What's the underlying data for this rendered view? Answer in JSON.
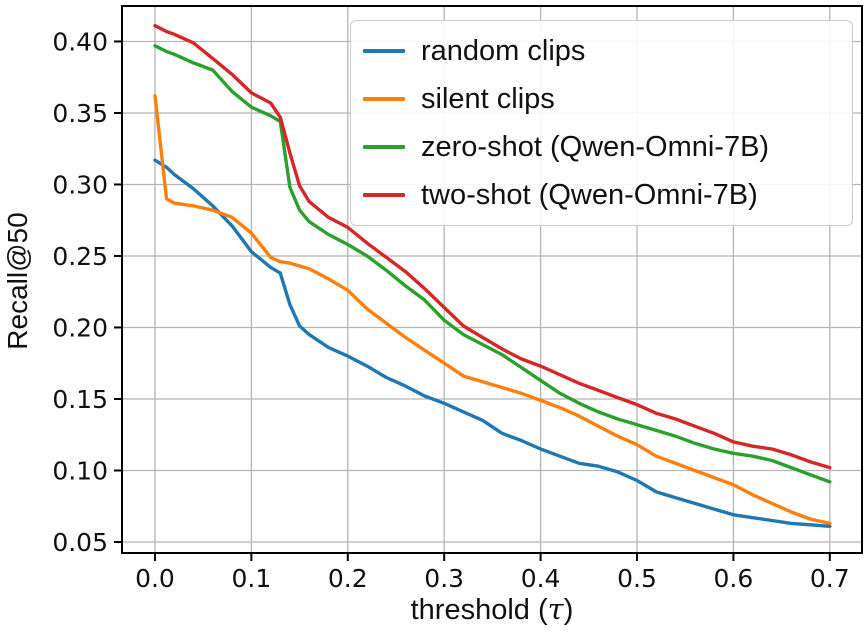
{
  "chart_data": {
    "type": "line",
    "title": "",
    "xlabel": "threshold (τ)",
    "ylabel": "Recall@50",
    "xlim": [
      -0.0342,
      0.7334
    ],
    "ylim": [
      0.0423,
      0.4248
    ],
    "xticks": [
      0.0,
      0.1,
      0.2,
      0.3,
      0.4,
      0.5,
      0.6,
      0.7
    ],
    "xtick_labels": [
      "0.0",
      "0.1",
      "0.2",
      "0.3",
      "0.4",
      "0.5",
      "0.6",
      "0.7"
    ],
    "yticks": [
      0.05,
      0.1,
      0.15,
      0.2,
      0.25,
      0.3,
      0.35,
      0.4
    ],
    "ytick_labels": [
      "0.05",
      "0.10",
      "0.15",
      "0.20",
      "0.25",
      "0.30",
      "0.35",
      "0.40"
    ],
    "grid": true,
    "grid_color": "#b5b5b5",
    "spine_color": "#000000",
    "legend_position": "upper right",
    "x": [
      0,
      0.012,
      0.02,
      0.04,
      0.06,
      0.08,
      0.1,
      0.12,
      0.13,
      0.14,
      0.15,
      0.16,
      0.18,
      0.2,
      0.22,
      0.24,
      0.26,
      0.28,
      0.3,
      0.32,
      0.34,
      0.36,
      0.38,
      0.4,
      0.42,
      0.44,
      0.46,
      0.48,
      0.5,
      0.52,
      0.54,
      0.56,
      0.58,
      0.6,
      0.62,
      0.64,
      0.66,
      0.68,
      0.7
    ],
    "series": [
      {
        "name": "random clips",
        "color": "#1f77b4",
        "values": [
          0.317,
          0.312,
          0.307,
          0.297,
          0.285,
          0.271,
          0.253,
          0.242,
          0.238,
          0.216,
          0.201,
          0.195,
          0.186,
          0.18,
          0.173,
          0.165,
          0.159,
          0.152,
          0.147,
          0.141,
          0.135,
          0.126,
          0.121,
          0.115,
          0.11,
          0.105,
          0.103,
          0.099,
          0.093,
          0.085,
          0.081,
          0.077,
          0.073,
          0.069,
          0.067,
          0.065,
          0.063,
          0.062,
          0.061
        ]
      },
      {
        "name": "silent clips",
        "color": "#ff7f0e",
        "values": [
          0.362,
          0.29,
          0.287,
          0.285,
          0.282,
          0.277,
          0.266,
          0.249,
          0.246,
          0.245,
          0.243,
          0.241,
          0.234,
          0.226,
          0.213,
          0.203,
          0.193,
          0.184,
          0.175,
          0.166,
          0.162,
          0.158,
          0.154,
          0.149,
          0.144,
          0.138,
          0.131,
          0.124,
          0.118,
          0.11,
          0.105,
          0.1,
          0.095,
          0.09,
          0.083,
          0.077,
          0.071,
          0.066,
          0.063
        ]
      },
      {
        "name": "zero-shot (Qwen-Omni-7B)",
        "color": "#2ca02c",
        "values": [
          0.397,
          0.393,
          0.391,
          0.385,
          0.38,
          0.365,
          0.354,
          0.348,
          0.344,
          0.298,
          0.282,
          0.274,
          0.265,
          0.258,
          0.25,
          0.24,
          0.229,
          0.219,
          0.205,
          0.195,
          0.188,
          0.181,
          0.172,
          0.163,
          0.154,
          0.147,
          0.141,
          0.136,
          0.132,
          0.128,
          0.124,
          0.119,
          0.115,
          0.112,
          0.11,
          0.107,
          0.102,
          0.097,
          0.092
        ]
      },
      {
        "name": "two-shot (Qwen-Omni-7B)",
        "color": "#d62728",
        "values": [
          0.411,
          0.407,
          0.405,
          0.399,
          0.388,
          0.377,
          0.364,
          0.357,
          0.347,
          0.322,
          0.299,
          0.288,
          0.277,
          0.27,
          0.259,
          0.249,
          0.239,
          0.227,
          0.214,
          0.201,
          0.193,
          0.185,
          0.178,
          0.173,
          0.167,
          0.161,
          0.156,
          0.151,
          0.146,
          0.14,
          0.136,
          0.131,
          0.126,
          0.12,
          0.117,
          0.115,
          0.111,
          0.106,
          0.102
        ]
      }
    ]
  }
}
